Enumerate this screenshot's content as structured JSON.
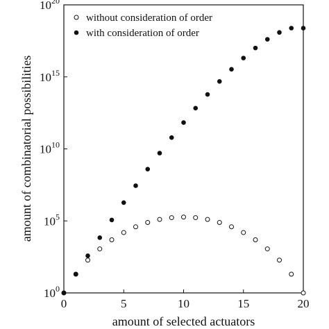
{
  "chart_data": {
    "type": "scatter",
    "xlabel": "amount of selected actuators",
    "ylabel": "amount of combinatorial possibilities",
    "xlim": [
      0,
      20
    ],
    "ylim": [
      1,
      1e+20
    ],
    "yscale": "log",
    "x_ticks": [
      {
        "label": "0",
        "value": 0
      },
      {
        "label": "5",
        "value": 5
      },
      {
        "label": "10",
        "value": 10
      },
      {
        "label": "15",
        "value": 15
      },
      {
        "label": "20",
        "value": 20
      }
    ],
    "y_ticks": [
      {
        "base": "10",
        "exp": "0",
        "value": 1
      },
      {
        "base": "10",
        "exp": "5",
        "value": 100000
      },
      {
        "base": "10",
        "exp": "10",
        "value": 10000000000
      },
      {
        "base": "10",
        "exp": "15",
        "value": 1000000000000000.0
      },
      {
        "base": "10",
        "exp": "20",
        "value": 1e+20
      }
    ],
    "grid": false,
    "legend_position": "top-left",
    "series": [
      {
        "name": "without consideration of order",
        "marker": "open-circle",
        "x": [
          0,
          1,
          2,
          3,
          4,
          5,
          6,
          7,
          8,
          9,
          10,
          11,
          12,
          13,
          14,
          15,
          16,
          17,
          18,
          19,
          20
        ],
        "y": [
          1,
          20,
          190,
          1140,
          4845,
          15504,
          38760,
          77520,
          125970,
          167960,
          184756,
          167960,
          125970,
          77520,
          38760,
          15504,
          4845,
          1140,
          190,
          20,
          1
        ]
      },
      {
        "name": "with consideration of order",
        "marker": "filled-circle",
        "x": [
          0,
          1,
          2,
          3,
          4,
          5,
          6,
          7,
          8,
          9,
          10,
          11,
          12,
          13,
          14,
          15,
          16,
          17,
          18,
          19,
          20
        ],
        "y": [
          1,
          20,
          380,
          6840,
          116280,
          1860480,
          27907200,
          390700800,
          5079110400,
          60949324800,
          670442572800,
          6704425728000,
          60339831552000,
          482718652416000,
          3379030566912000,
          20274183401472000,
          101370917007360000,
          405483668029440000,
          1216451004088320000,
          2432902008176640000,
          2432902008176640000
        ]
      }
    ]
  }
}
